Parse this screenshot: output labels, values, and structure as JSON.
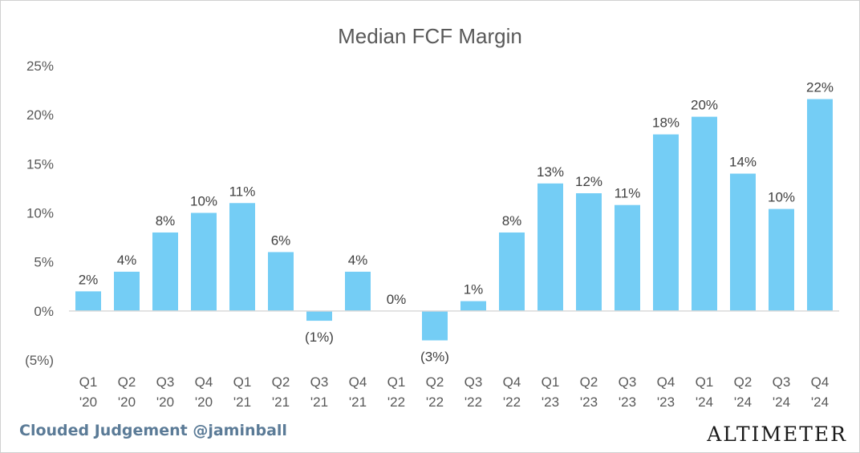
{
  "chart_data": {
    "type": "bar",
    "title": "Median FCF Margin",
    "categories": [
      [
        "Q1",
        "'20"
      ],
      [
        "Q2",
        "'20"
      ],
      [
        "Q3",
        "'20"
      ],
      [
        "Q4",
        "'20"
      ],
      [
        "Q1",
        "'21"
      ],
      [
        "Q2",
        "'21"
      ],
      [
        "Q3",
        "'21"
      ],
      [
        "Q4",
        "'21"
      ],
      [
        "Q1",
        "'22"
      ],
      [
        "Q2",
        "'22"
      ],
      [
        "Q3",
        "'22"
      ],
      [
        "Q4",
        "'22"
      ],
      [
        "Q1",
        "'23"
      ],
      [
        "Q2",
        "'23"
      ],
      [
        "Q3",
        "'23"
      ],
      [
        "Q4",
        "'23"
      ],
      [
        "Q1",
        "'24"
      ],
      [
        "Q2",
        "'24"
      ],
      [
        "Q3",
        "'24"
      ],
      [
        "Q4",
        "'24"
      ]
    ],
    "values": [
      2,
      4,
      8,
      10,
      11,
      6,
      -1,
      4,
      0,
      -3,
      1,
      8,
      13,
      12,
      10.8,
      18,
      19.8,
      14,
      10.4,
      21.6
    ],
    "data_labels": [
      "2%",
      "4%",
      "8%",
      "10%",
      "11%",
      "6%",
      "(1%)",
      "4%",
      "0%",
      "(3%)",
      "1%",
      "8%",
      "13%",
      "12%",
      "11%",
      "18%",
      "20%",
      "14%",
      "10%",
      "22%"
    ],
    "ylim": [
      -5,
      25
    ],
    "yticks": [
      25,
      20,
      15,
      10,
      5,
      0,
      -5
    ],
    "ytick_labels": [
      "25%",
      "20%",
      "15%",
      "10%",
      "5%",
      "0%",
      "(5%)"
    ],
    "xlabel": "",
    "ylabel": "",
    "grid": false,
    "bar_color": "#74cdf5",
    "axis_color": "#d9d9d9",
    "text_color": "#404040",
    "tick_color": "#595959"
  },
  "footer": {
    "source": "Clouded Judgement @jaminball",
    "brand": "ALTIMETER"
  }
}
